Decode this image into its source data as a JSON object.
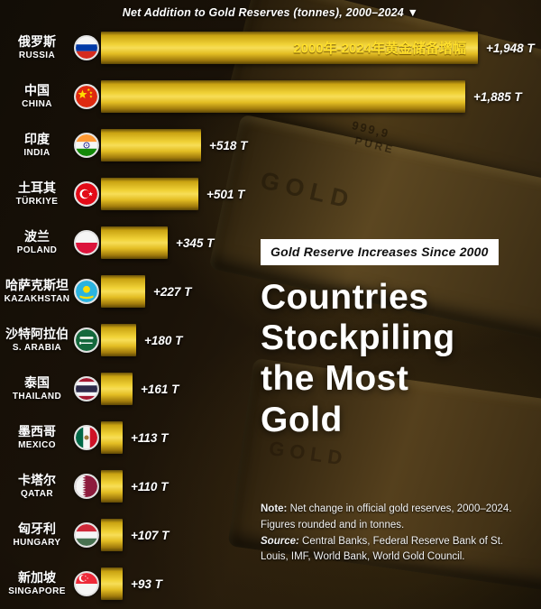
{
  "header": {
    "title": "Net Addition to Gold Reserves (tonnes), 2000–2024 ▼"
  },
  "chart_data": {
    "type": "bar",
    "orientation": "horizontal",
    "title": "Net Addition to Gold Reserves (tonnes), 2000–2024",
    "unit": "tonnes",
    "xlim": [
      0,
      2000
    ],
    "annotation_on_first_bar": "2000年-2024年黄金储备增幅",
    "rows": [
      {
        "name_zh": "俄罗斯",
        "name_en": "RUSSIA",
        "value": 1948,
        "label": "+1,948 T",
        "flag": "russia"
      },
      {
        "name_zh": "中国",
        "name_en": "CHINA",
        "value": 1885,
        "label": "+1,885 T",
        "flag": "china"
      },
      {
        "name_zh": "印度",
        "name_en": "INDIA",
        "value": 518,
        "label": "+518 T",
        "flag": "india"
      },
      {
        "name_zh": "土耳其",
        "name_en": "TÜRKIYE",
        "value": 501,
        "label": "+501 T",
        "flag": "turkiye"
      },
      {
        "name_zh": "波兰",
        "name_en": "POLAND",
        "value": 345,
        "label": "+345 T",
        "flag": "poland"
      },
      {
        "name_zh": "哈萨克斯坦",
        "name_en": "KAZAKHSTAN",
        "value": 227,
        "label": "+227 T",
        "flag": "kazakhstan"
      },
      {
        "name_zh": "沙特阿拉伯",
        "name_en": "S. ARABIA",
        "value": 180,
        "label": "+180 T",
        "flag": "saudi"
      },
      {
        "name_zh": "泰国",
        "name_en": "THAILAND",
        "value": 161,
        "label": "+161 T",
        "flag": "thailand"
      },
      {
        "name_zh": "墨西哥",
        "name_en": "MEXICO",
        "value": 113,
        "label": "+113 T",
        "flag": "mexico"
      },
      {
        "name_zh": "卡塔尔",
        "name_en": "QATAR",
        "value": 110,
        "label": "+110 T",
        "flag": "qatar"
      },
      {
        "name_zh": "匈牙利",
        "name_en": "HUNGARY",
        "value": 107,
        "label": "+107 T",
        "flag": "hungary"
      },
      {
        "name_zh": "新加坡",
        "name_en": "SINGAPORE",
        "value": 93,
        "label": "+93 T",
        "flag": "singapore"
      }
    ]
  },
  "panel": {
    "badge": "Gold Reserve Increases Since 2000",
    "heading_lines": [
      "Countries",
      "Stockpiling",
      "the Most",
      "Gold"
    ],
    "note_label": "Note:",
    "note_text": "Net change in official gold reserves, 2000–2024. Figures rounded and in tonnes.",
    "source_label": "Source:",
    "source_text": "Central Banks, Federal Reserve Bank of St. Louis, IMF, World Bank, World Gold Council."
  },
  "background": {
    "stamp_numbers": "999,9",
    "stamp_pure": "PURE",
    "stamp_gold": "GOLD"
  },
  "colors": {
    "bar_gold_light": "#f6d83b",
    "bar_gold_dark": "#8a6a08",
    "annotation_yellow": "#ffdf2b",
    "bg_dark": "#120d06",
    "text_white": "#ffffff"
  }
}
